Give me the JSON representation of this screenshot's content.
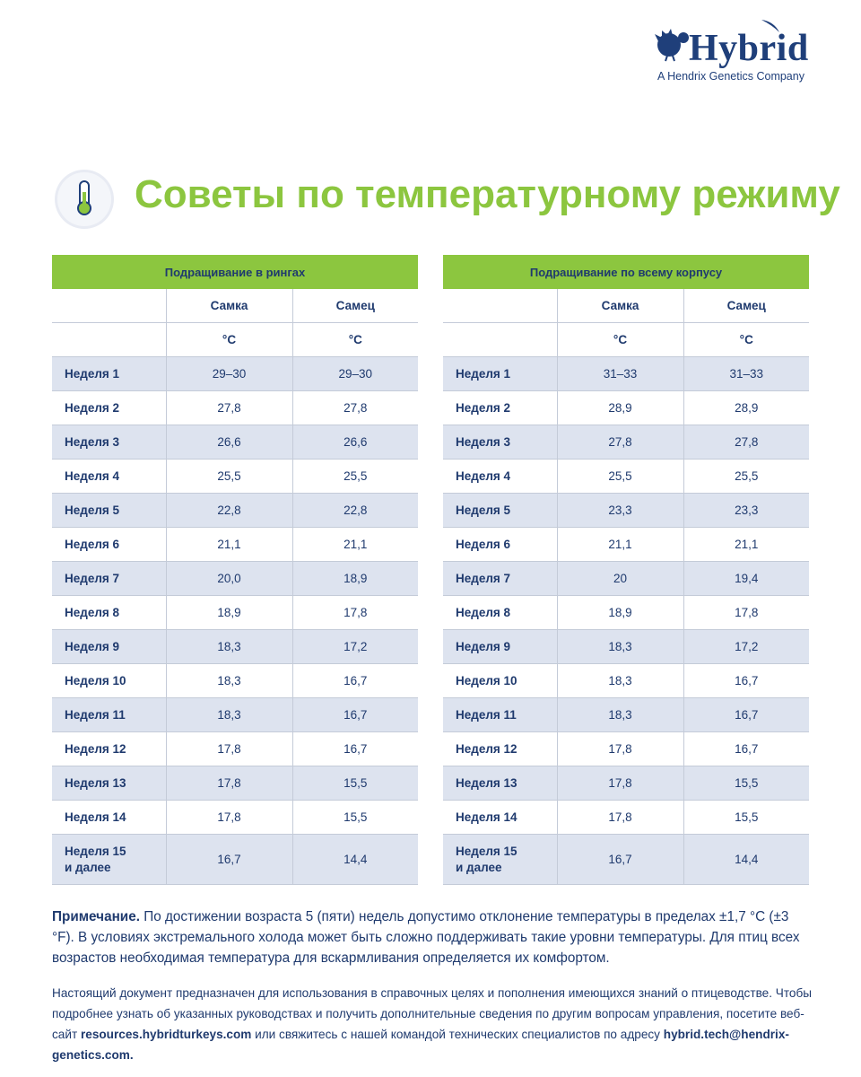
{
  "logo": {
    "name": "Hybrid",
    "tagline": "A Hendrix Genetics Company"
  },
  "title": "Советы по температурному режиму",
  "tables": [
    {
      "header": "Подращивание в рингах",
      "columns": [
        "Самка",
        "Самец"
      ],
      "units": [
        "°C",
        "°C"
      ],
      "rows": [
        {
          "label": "Неделя 1",
          "values": [
            "29–30",
            "29–30"
          ]
        },
        {
          "label": "Неделя 2",
          "values": [
            "27,8",
            "27,8"
          ]
        },
        {
          "label": "Неделя 3",
          "values": [
            "26,6",
            "26,6"
          ]
        },
        {
          "label": "Неделя 4",
          "values": [
            "25,5",
            "25,5"
          ]
        },
        {
          "label": "Неделя 5",
          "values": [
            "22,8",
            "22,8"
          ]
        },
        {
          "label": "Неделя 6",
          "values": [
            "21,1",
            "21,1"
          ]
        },
        {
          "label": "Неделя 7",
          "values": [
            "20,0",
            "18,9"
          ]
        },
        {
          "label": "Неделя 8",
          "values": [
            "18,9",
            "17,8"
          ]
        },
        {
          "label": "Неделя 9",
          "values": [
            "18,3",
            "17,2"
          ]
        },
        {
          "label": "Неделя 10",
          "values": [
            "18,3",
            "16,7"
          ]
        },
        {
          "label": "Неделя 11",
          "values": [
            "18,3",
            "16,7"
          ]
        },
        {
          "label": "Неделя 12",
          "values": [
            "17,8",
            "16,7"
          ]
        },
        {
          "label": "Неделя 13",
          "values": [
            "17,8",
            "15,5"
          ]
        },
        {
          "label": "Неделя 14",
          "values": [
            "17,8",
            "15,5"
          ]
        },
        {
          "label": "Неделя 15\nи далее",
          "values": [
            "16,7",
            "14,4"
          ]
        }
      ]
    },
    {
      "header": "Подращивание по всему корпусу",
      "columns": [
        "Самка",
        "Самец"
      ],
      "units": [
        "°C",
        "°C"
      ],
      "rows": [
        {
          "label": "Неделя 1",
          "values": [
            "31–33",
            "31–33"
          ]
        },
        {
          "label": "Неделя 2",
          "values": [
            "28,9",
            "28,9"
          ]
        },
        {
          "label": "Неделя 3",
          "values": [
            "27,8",
            "27,8"
          ]
        },
        {
          "label": "Неделя 4",
          "values": [
            "25,5",
            "25,5"
          ]
        },
        {
          "label": "Неделя 5",
          "values": [
            "23,3",
            "23,3"
          ]
        },
        {
          "label": "Неделя 6",
          "values": [
            "21,1",
            "21,1"
          ]
        },
        {
          "label": "Неделя 7",
          "values": [
            "20",
            "19,4"
          ]
        },
        {
          "label": "Неделя 8",
          "values": [
            "18,9",
            "17,8"
          ]
        },
        {
          "label": "Неделя 9",
          "values": [
            "18,3",
            "17,2"
          ]
        },
        {
          "label": "Неделя 10",
          "values": [
            "18,3",
            "16,7"
          ]
        },
        {
          "label": "Неделя 11",
          "values": [
            "18,3",
            "16,7"
          ]
        },
        {
          "label": "Неделя 12",
          "values": [
            "17,8",
            "16,7"
          ]
        },
        {
          "label": "Неделя 13",
          "values": [
            "17,8",
            "15,5"
          ]
        },
        {
          "label": "Неделя 14",
          "values": [
            "17,8",
            "15,5"
          ]
        },
        {
          "label": "Неделя 15\nи далее",
          "values": [
            "16,7",
            "14,4"
          ]
        }
      ]
    }
  ],
  "note": {
    "label": "Примечание.",
    "text": "По достижении возраста 5 (пяти) недель допустимо отклонение температуры в пределах ±1,7 °C (±3 °F). В условиях экстремального холода может быть сложно поддерживать такие уровни температуры. Для птиц всех возрастов необходимая температура для вскармливания определяется их комфортом."
  },
  "footer": {
    "text1": "Настоящий документ предназначен для использования в справочных целях и пополнения имеющихся знаний о птицеводстве. Чтобы подробнее узнать об указанных руководствах и получить дополнительные сведения по другим вопросам управления, посетите веб-сайт",
    "link": "resources.hybridturkeys.com",
    "text2": "или свяжитесь с нашей командой технических специалистов по адресу",
    "email": "hybrid.tech@hendrix-genetics.com."
  }
}
